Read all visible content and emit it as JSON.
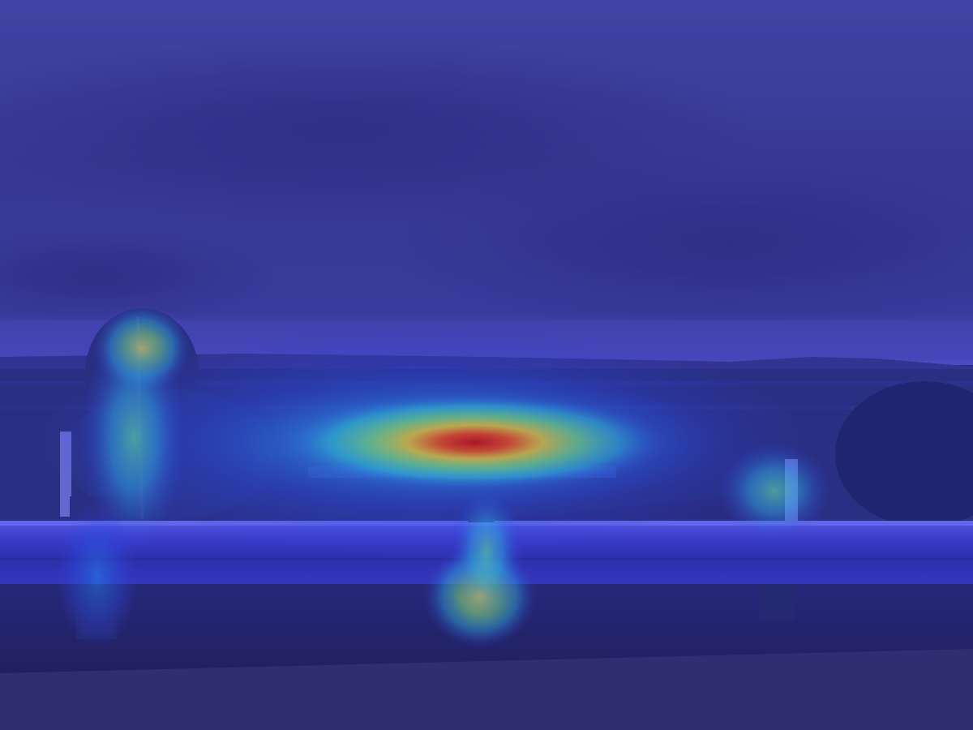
{
  "image": {
    "kind": "photo-with-saliency-heatmap-overlay",
    "subject": "overlook-view-over-city-with-guardrail",
    "heatmap_colormap": "jet",
    "colors": {
      "sky_top": "#3f3f98",
      "sky_mid": "#3a3a8e",
      "horizon": "#4a4ab8",
      "city": "#28307a",
      "ground": "#24245e",
      "road": "#30306a",
      "rail": "#3a3ec8",
      "hot": "#d01010",
      "warm": "#f0a020",
      "yellow": "#e8e840",
      "cool": "#40d0c0",
      "cold": "#3040e0"
    },
    "hotspots": [
      {
        "id": "city-center",
        "intensity": 1.0
      },
      {
        "id": "tree-top-left",
        "intensity": 0.55
      },
      {
        "id": "post-center",
        "intensity": 0.45
      },
      {
        "id": "post-right",
        "intensity": 0.35
      },
      {
        "id": "post-left",
        "intensity": 0.3
      }
    ]
  }
}
